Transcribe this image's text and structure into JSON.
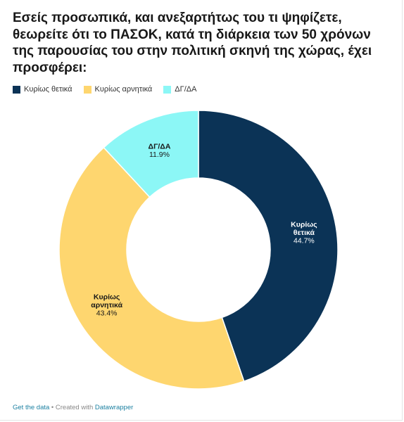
{
  "title": "Εσείς προσωπικά, και ανεξαρτήτως του τι ψηφίζετε, θεωρείτε ότι το ΠΑΣΟΚ, κατά τη διάρκεια των 50 χρόνων της παρουσίας του στην πολιτική σκηνή της χώρας, έχει προσφέρει:",
  "footer": {
    "get_data": "Get the data",
    "separator": " • Created with ",
    "tool": "Datawrapper"
  },
  "chart_data": {
    "type": "pie",
    "title": "Εσείς προσωπικά, και ανεξαρτήτως του τι ψηφίζετε, θεωρείτε ότι το ΠΑΣΟΚ, κατά τη διάρκεια των 50 χρόνων της παρουσίας του στην πολιτική σκηνή της χώρας, έχει προσφέρει:",
    "donut": true,
    "legend_position": "top-left",
    "slices": [
      {
        "name": "Κυρίως θετικά",
        "value": 44.7,
        "label_text": "44.7%",
        "label_lines": [
          "Κυρίως",
          "θετικά"
        ],
        "color": "#0b3356",
        "text_color": "#ffffff"
      },
      {
        "name": "Κυρίως αρνητικά",
        "value": 43.4,
        "label_text": "43.4%",
        "label_lines": [
          "Κυρίως",
          "αρνητικά"
        ],
        "color": "#fed66f",
        "text_color": "#181818"
      },
      {
        "name": "ΔΓ/ΔΑ",
        "value": 11.9,
        "label_text": "11.9%",
        "label_lines": [
          "ΔΓ/ΔΑ"
        ],
        "color": "#8cf7f6",
        "text_color": "#181818"
      }
    ]
  }
}
